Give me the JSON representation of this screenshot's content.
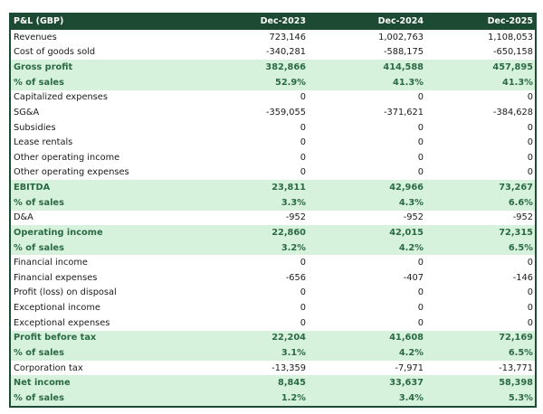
{
  "header": {
    "title": "P&L (GBP)",
    "columns": [
      "Dec-2023",
      "Dec-2024",
      "Dec-2025"
    ]
  },
  "colors": {
    "header_bg": "#1d4a32",
    "highlight_bg": "#d6f1dc",
    "highlight_text": "#2b6a43"
  },
  "rows": [
    {
      "label": "Revenues",
      "values": [
        "723,146",
        "1,002,763",
        "1,108,053"
      ],
      "highlight": false
    },
    {
      "label": "Cost of goods sold",
      "values": [
        "-340,281",
        "-588,175",
        "-650,158"
      ],
      "highlight": false
    },
    {
      "label": "Gross profit",
      "values": [
        "382,866",
        "414,588",
        "457,895"
      ],
      "highlight": true
    },
    {
      "label": "% of sales",
      "values": [
        "52.9%",
        "41.3%",
        "41.3%"
      ],
      "highlight": true
    },
    {
      "label": "Capitalized expenses",
      "values": [
        "0",
        "0",
        "0"
      ],
      "highlight": false
    },
    {
      "label": "SG&A",
      "values": [
        "-359,055",
        "-371,621",
        "-384,628"
      ],
      "highlight": false
    },
    {
      "label": "Subsidies",
      "values": [
        "0",
        "0",
        "0"
      ],
      "highlight": false
    },
    {
      "label": "Lease rentals",
      "values": [
        "0",
        "0",
        "0"
      ],
      "highlight": false
    },
    {
      "label": "Other operating income",
      "values": [
        "0",
        "0",
        "0"
      ],
      "highlight": false
    },
    {
      "label": "Other operating expenses",
      "values": [
        "0",
        "0",
        "0"
      ],
      "highlight": false
    },
    {
      "label": "EBITDA",
      "values": [
        "23,811",
        "42,966",
        "73,267"
      ],
      "highlight": true
    },
    {
      "label": "% of sales",
      "values": [
        "3.3%",
        "4.3%",
        "6.6%"
      ],
      "highlight": true
    },
    {
      "label": "D&A",
      "values": [
        "-952",
        "-952",
        "-952"
      ],
      "highlight": false
    },
    {
      "label": "Operating income",
      "values": [
        "22,860",
        "42,015",
        "72,315"
      ],
      "highlight": true
    },
    {
      "label": "% of sales",
      "values": [
        "3.2%",
        "4.2%",
        "6.5%"
      ],
      "highlight": true
    },
    {
      "label": "Financial income",
      "values": [
        "0",
        "0",
        "0"
      ],
      "highlight": false
    },
    {
      "label": "Financial expenses",
      "values": [
        "-656",
        "-407",
        "-146"
      ],
      "highlight": false
    },
    {
      "label": "Profit (loss) on disposal",
      "values": [
        "0",
        "0",
        "0"
      ],
      "highlight": false
    },
    {
      "label": "Exceptional income",
      "values": [
        "0",
        "0",
        "0"
      ],
      "highlight": false
    },
    {
      "label": "Exceptional expenses",
      "values": [
        "0",
        "0",
        "0"
      ],
      "highlight": false
    },
    {
      "label": "Profit before tax",
      "values": [
        "22,204",
        "41,608",
        "72,169"
      ],
      "highlight": true
    },
    {
      "label": "% of sales",
      "values": [
        "3.1%",
        "4.2%",
        "6.5%"
      ],
      "highlight": true
    },
    {
      "label": "Corporation tax",
      "values": [
        "-13,359",
        "-7,971",
        "-13,771"
      ],
      "highlight": false
    },
    {
      "label": "Net income",
      "values": [
        "8,845",
        "33,637",
        "58,398"
      ],
      "highlight": true
    },
    {
      "label": "% of sales",
      "values": [
        "1.2%",
        "3.4%",
        "5.3%"
      ],
      "highlight": true
    }
  ]
}
